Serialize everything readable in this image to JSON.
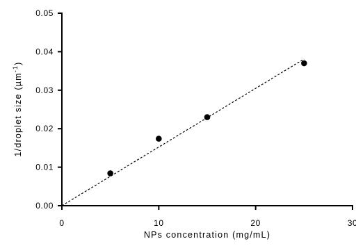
{
  "chart_data": {
    "type": "scatter",
    "title": "",
    "xlabel": "NPs concentration (mg/mL)",
    "ylabel": "1/droplet size (µm",
    "ylabel_superscript": "-1",
    "ylabel_suffix": ")",
    "xlim": [
      0,
      30
    ],
    "ylim": [
      0,
      0.05
    ],
    "x_ticks": [
      0,
      10,
      20,
      30
    ],
    "x_tick_labels": [
      "0",
      "10",
      "20",
      "30"
    ],
    "y_ticks": [
      0,
      0.01,
      0.02,
      0.03,
      0.04,
      0.05
    ],
    "y_tick_labels": [
      "0.00",
      "0.01",
      "0.02",
      "0.03",
      "0.04",
      "0.05"
    ],
    "grid": false,
    "series": [
      {
        "x": [
          5,
          10,
          15,
          25
        ],
        "y": [
          0.0084,
          0.0174,
          0.023,
          0.037
        ]
      }
    ],
    "fit_line": {
      "style": "dashed",
      "x": [
        0,
        25
      ],
      "y": [
        0,
        0.0381
      ]
    },
    "colors": {
      "points": "#000000",
      "axes": "#000000"
    }
  }
}
